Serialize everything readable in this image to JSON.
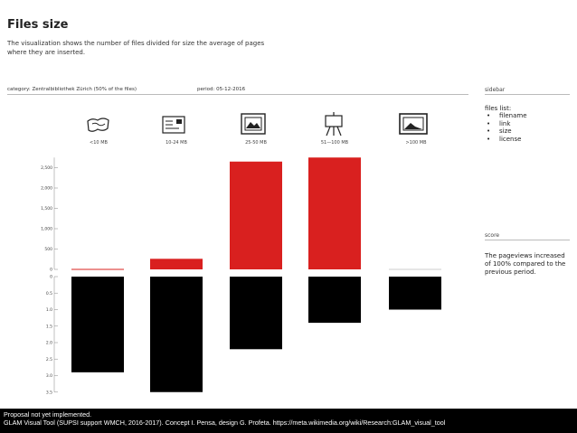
{
  "header": {
    "title": "Files size",
    "subtitle": "The visualization shows the number of files divided for size the average of pages where they are inserted."
  },
  "filter": {
    "category": "category: Zentralbibliothek Zürich (50% of the files)",
    "period": "period: 05-12-2016"
  },
  "sidebar": {
    "label": "sidebar",
    "files_list_title": "files list:",
    "files_list": [
      "filename",
      "link",
      "size",
      "license"
    ],
    "score_label": "score",
    "score_text": "The pageviews increased of 100% compared to the previous period."
  },
  "categories": [
    {
      "label": "<10 MB",
      "icon": "map-icon"
    },
    {
      "label": "10-24 MB",
      "icon": "postcard-icon"
    },
    {
      "label": "25-50 MB",
      "icon": "framed-picture-icon"
    },
    {
      "label": "51—100 MB",
      "icon": "easel-icon"
    },
    {
      "label": ">100 MB",
      "icon": "landscape-frame-icon"
    }
  ],
  "chart_data": {
    "type": "bar",
    "categories": [
      "<10 MB",
      "10-24 MB",
      "25-50 MB",
      "51—100 MB",
      ">100 MB"
    ],
    "series": [
      {
        "values": [
          20,
          260,
          2650,
          2750,
          0
        ],
        "color": "#d9201f"
      },
      {
        "values": [
          2.9,
          3.5,
          2.2,
          1.4,
          1.0
        ],
        "color": "#000000"
      }
    ],
    "top_ticks": [
      "2,500",
      "2,000",
      "1,500",
      "1,000",
      "500",
      "0"
    ],
    "bottom_ticks": [
      "0",
      "0.5",
      "1.0",
      "1.5",
      "2.0",
      "2.5",
      "3.0",
      "3.5"
    ],
    "top_ylim": [
      0,
      2750
    ],
    "bottom_ylim": [
      0,
      3.5
    ]
  },
  "caption": {
    "line1": "Proposal not yet implemented.",
    "line2": "GLAM Visual Tool (SUPSI support WMCH, 2016-2017). Concept I. Pensa, design G. Profeta. https://meta.wikimedia.org/wiki/Research:GLAM_visual_tool"
  }
}
